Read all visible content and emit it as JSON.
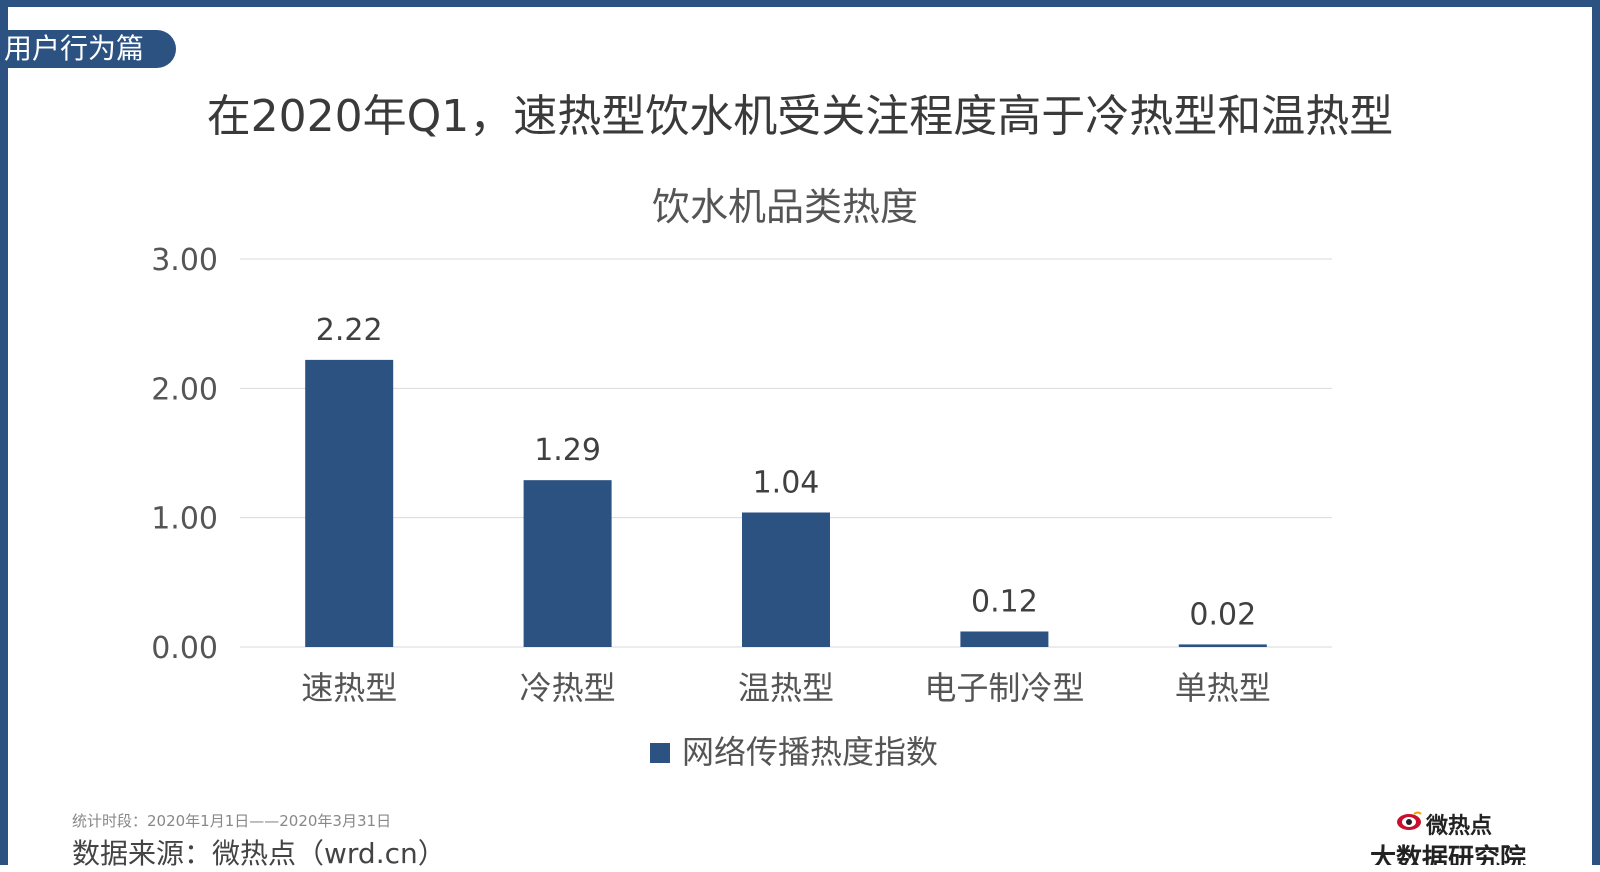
{
  "section_tag": "用户行为篇",
  "headline": "在2020年Q1，速热型饮水机受关注程度高于冷热型和温热型",
  "footer": {
    "period": "统计时段：2020年1月1日——2020年3月31日",
    "source": "数据来源：微热点（wrd.cn）"
  },
  "logo": {
    "name": "微热点",
    "sub": "大数据研究院",
    "icon": "eye-logo-icon"
  },
  "colors": {
    "frame": "#2c5282",
    "bar": "#2c5282",
    "text": "#3a3a3a",
    "grid": "#d9d9d9"
  },
  "chart_data": {
    "type": "bar",
    "title": "饮水机品类热度",
    "categories": [
      "速热型",
      "冷热型",
      "温热型",
      "电子制冷型",
      "单热型"
    ],
    "series": [
      {
        "name": "网络传播热度指数",
        "values": [
          2.22,
          1.29,
          1.04,
          0.12,
          0.02
        ]
      }
    ],
    "data_labels": [
      "2.22",
      "1.29",
      "1.04",
      "0.12",
      "0.02"
    ],
    "y_ticks": [
      "0.00",
      "1.00",
      "2.00",
      "3.00"
    ],
    "ylim": [
      0,
      3
    ],
    "xlabel": "",
    "ylabel": "",
    "grid": true,
    "legend": "bottom-center"
  }
}
